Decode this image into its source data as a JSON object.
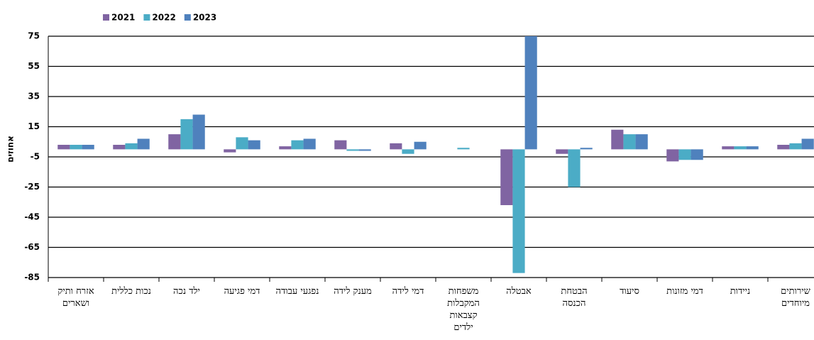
{
  "chart_data": {
    "type": "bar",
    "y_label": "אחוזים",
    "categories": [
      "אזרח ותיק ושארים",
      "נכות כללית",
      "ילד נכה",
      "דמי פגיעה",
      "נפגעי עבודה",
      "מענק לידה",
      "דמי לידה",
      "משפחות המקבלות קצבאות ילדים",
      "אבטלה",
      "הבטחת הכנסה",
      "סיעוד",
      "דמי מזונות",
      "ניידות",
      "שירותים מיוחדים"
    ],
    "series": [
      {
        "name": "2021",
        "color": "#8064a2",
        "values": [
          3,
          3,
          10,
          -2,
          2,
          6,
          4,
          0,
          -37,
          -3,
          13,
          -8,
          2,
          3
        ]
      },
      {
        "name": "2022",
        "color": "#4bacc6",
        "values": [
          3,
          4,
          20,
          8,
          6,
          -1,
          -3,
          1,
          -82,
          -25,
          10,
          -7,
          2,
          4
        ]
      },
      {
        "name": "2023",
        "color": "#4f81bd",
        "values": [
          3,
          7,
          23,
          6,
          7,
          -1,
          5,
          0,
          75,
          1,
          10,
          -7,
          2,
          7
        ]
      }
    ],
    "ylim": [
      -85,
      75
    ],
    "yticks": [
      -85,
      -65,
      -45,
      -25,
      -5,
      15,
      35,
      55,
      75
    ],
    "grid": true,
    "legend": "top-left"
  }
}
